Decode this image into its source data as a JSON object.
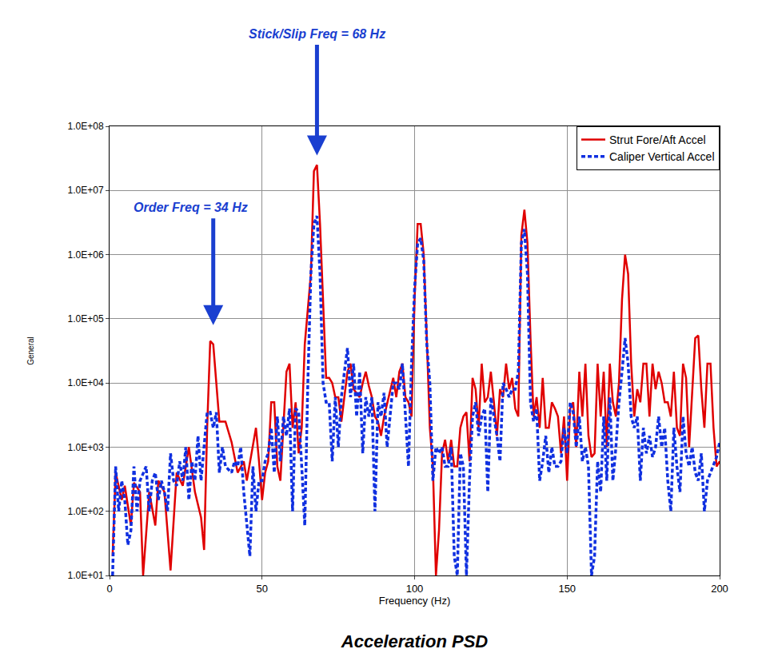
{
  "chart_data": {
    "type": "line",
    "title": "Acceleration PSD",
    "x_label": "Frequency (Hz)",
    "y_label": "General",
    "xlim": [
      0,
      200
    ],
    "xticks": [
      0,
      50,
      100,
      150,
      200
    ],
    "ylim": [
      10,
      100000000
    ],
    "yticks": [
      {
        "value": 10,
        "label": "1.0E+01"
      },
      {
        "value": 100,
        "label": "1.0E+02"
      },
      {
        "value": 1000,
        "label": "1.0E+03"
      },
      {
        "value": 10000,
        "label": "1.0E+04"
      },
      {
        "value": 100000,
        "label": "1.0E+05"
      },
      {
        "value": 1000000,
        "label": "1.0E+06"
      },
      {
        "value": 10000000,
        "label": "1.0E+07"
      },
      {
        "value": 100000000,
        "label": "1.0E+08"
      }
    ],
    "log": "y",
    "grid": true,
    "legend": "upper right",
    "annotations": [
      {
        "text": "Stick/Slip Freq = 68 Hz",
        "x": 68,
        "y": 35000000
      },
      {
        "text": "Order Freq = 34 Hz",
        "x": 34,
        "y": 80000
      }
    ],
    "series": [
      {
        "name": "Strut Fore/Aft Accel",
        "color": "#e00000",
        "line_style": "solid",
        "x": [
          1,
          2,
          4,
          5,
          7,
          8,
          10,
          11,
          13,
          15,
          16,
          18,
          20,
          22,
          24,
          26,
          28,
          30,
          31,
          32,
          33,
          34,
          35,
          36,
          38,
          40,
          42,
          44,
          45,
          47,
          48,
          49,
          50,
          51,
          52,
          53,
          54,
          55,
          56,
          58,
          59,
          60,
          61,
          62,
          63,
          64,
          66,
          67,
          68,
          69,
          70,
          71,
          72,
          73,
          74,
          75,
          76,
          78,
          79,
          80,
          82,
          83,
          84,
          85,
          86,
          87,
          88,
          89,
          90,
          92,
          93,
          94,
          95,
          96,
          97,
          98,
          99,
          100,
          101,
          102,
          103,
          104,
          105,
          106,
          107,
          108,
          109,
          110,
          111,
          112,
          113,
          114,
          115,
          116,
          117,
          118,
          119,
          120,
          121,
          122,
          123,
          124,
          125,
          126,
          127,
          128,
          129,
          130,
          131,
          132,
          133,
          134,
          135,
          136,
          137,
          138,
          139,
          140,
          141,
          142,
          143,
          144,
          145,
          146,
          147,
          148,
          149,
          150,
          151,
          152,
          153,
          154,
          155,
          156,
          157,
          158,
          159,
          160,
          161,
          162,
          163,
          164,
          165,
          166,
          167,
          168,
          169,
          170,
          171,
          172,
          173,
          174,
          175,
          176,
          177,
          178,
          179,
          180,
          181,
          182,
          183,
          184,
          185,
          186,
          187,
          188,
          189,
          190,
          191,
          192,
          193,
          194,
          195,
          196,
          197,
          198,
          199,
          200
        ],
        "values": [
          20,
          400,
          150,
          250,
          60,
          280,
          200,
          10,
          200,
          60,
          300,
          200,
          12,
          400,
          250,
          1000,
          200,
          80,
          25,
          2000,
          45000,
          40000,
          10000,
          2500,
          2500,
          1200,
          400,
          600,
          300,
          1000,
          2000,
          600,
          150,
          400,
          600,
          5000,
          5000,
          500,
          300,
          15000,
          20000,
          2000,
          5000,
          800,
          2000,
          40000,
          500000,
          20000000,
          25000000,
          3000000,
          200000,
          12000,
          12000,
          10000,
          6000,
          6000,
          2500,
          15000,
          20000,
          8000,
          6000,
          10000,
          15000,
          9000,
          6000,
          3000,
          2500,
          1500,
          3000,
          8000,
          12000,
          6000,
          15000,
          20000,
          6000,
          5000,
          3000,
          200000,
          3000000,
          3000000,
          1000000,
          50000,
          2000,
          500,
          10,
          50,
          800,
          1300,
          600,
          1300,
          500,
          500,
          2000,
          3000,
          3500,
          600,
          12000,
          8000,
          2000,
          20000,
          5000,
          6000,
          15000,
          5000,
          1500,
          8000,
          6000,
          20000,
          8000,
          12000,
          4000,
          3000,
          2000000,
          5000000,
          1500000,
          50000,
          3000,
          6000,
          2000,
          12000,
          2000,
          2000,
          5000,
          4000,
          3000,
          800,
          3000,
          300,
          4000,
          5000,
          1000,
          15000,
          3000,
          20000,
          1500,
          700,
          800,
          20000,
          3000,
          15000,
          1000,
          20000,
          5000,
          3000,
          10000,
          200000,
          1000000,
          500000,
          20000,
          3000,
          8000,
          5000,
          20000,
          20000,
          3000,
          20000,
          8000,
          15000,
          10000,
          5000,
          5000,
          3000,
          15000,
          2000,
          1500,
          20000,
          12000,
          1000,
          8000,
          50000,
          55000,
          8000,
          2000,
          20000,
          20000,
          2000,
          500,
          600
        ]
      },
      {
        "name": "Caliper Vertical Accel",
        "color": "#1030e0",
        "line_style": "dashed",
        "x": [
          1,
          2,
          3,
          4,
          5,
          6,
          7,
          8,
          9,
          10,
          12,
          13,
          14,
          15,
          16,
          17,
          18,
          19,
          20,
          21,
          22,
          23,
          24,
          25,
          26,
          27,
          28,
          29,
          30,
          31,
          32,
          33,
          34,
          35,
          36,
          37,
          38,
          40,
          41,
          42,
          43,
          44,
          45,
          46,
          47,
          48,
          49,
          50,
          51,
          52,
          53,
          54,
          55,
          56,
          57,
          58,
          59,
          60,
          61,
          62,
          63,
          64,
          65,
          66,
          67,
          68,
          69,
          70,
          71,
          72,
          73,
          74,
          75,
          76,
          77,
          78,
          79,
          80,
          81,
          82,
          83,
          84,
          85,
          86,
          87,
          88,
          89,
          90,
          91,
          92,
          93,
          94,
          95,
          96,
          97,
          98,
          99,
          100,
          101,
          102,
          103,
          104,
          105,
          106,
          107,
          108,
          109,
          110,
          111,
          112,
          113,
          114,
          115,
          116,
          117,
          118,
          119,
          120,
          121,
          122,
          123,
          124,
          125,
          126,
          127,
          128,
          129,
          130,
          131,
          132,
          133,
          134,
          135,
          136,
          137,
          138,
          139,
          140,
          141,
          142,
          143,
          144,
          145,
          146,
          147,
          148,
          149,
          150,
          151,
          152,
          153,
          154,
          155,
          156,
          157,
          158,
          159,
          160,
          161,
          162,
          163,
          164,
          165,
          166,
          167,
          168,
          169,
          170,
          171,
          172,
          173,
          174,
          175,
          176,
          177,
          178,
          179,
          180,
          181,
          182,
          183,
          184,
          185,
          186,
          187,
          188,
          189,
          190,
          191,
          192,
          193,
          194,
          195,
          196,
          197,
          198,
          199,
          200
        ],
        "values": [
          10,
          500,
          100,
          300,
          150,
          30,
          50,
          500,
          100,
          300,
          500,
          100,
          300,
          400,
          150,
          300,
          200,
          100,
          800,
          300,
          250,
          600,
          300,
          1000,
          150,
          600,
          300,
          1500,
          300,
          1000,
          3500,
          3500,
          2000,
          3500,
          400,
          1000,
          500,
          400,
          600,
          500,
          1000,
          200,
          60,
          20,
          500,
          100,
          300,
          300,
          600,
          800,
          2000,
          400,
          3000,
          600,
          3000,
          1500,
          4000,
          100,
          4000,
          3500,
          500,
          60,
          10000,
          500000,
          3000000,
          4000000,
          500000,
          10000,
          5000,
          5000,
          600,
          6000,
          1000,
          6000,
          15000,
          35000,
          6000,
          20000,
          3000,
          15000,
          800,
          6000,
          3000,
          6000,
          100,
          5000,
          3000,
          7000,
          1000,
          3000,
          10000,
          10000,
          8000,
          20000,
          3000,
          500,
          20000,
          300000,
          1500000,
          1800000,
          800000,
          40000,
          10000,
          300,
          1000,
          800,
          1000,
          500,
          500,
          1000,
          20,
          10,
          800,
          500,
          10,
          300,
          3000,
          5000,
          1500,
          3000,
          4000,
          200,
          6000,
          3000,
          1500,
          600,
          10000,
          8000,
          6000,
          8000,
          8000,
          15000,
          1500000,
          2500000,
          500000,
          5000,
          2500,
          4000,
          300,
          600,
          1500,
          400,
          1000,
          500,
          500,
          600,
          2000,
          800,
          5000,
          3500,
          1000,
          3000,
          600,
          1000,
          500,
          10,
          20,
          600,
          200,
          3000,
          300,
          6000,
          300,
          1000,
          5000,
          15000,
          50000,
          20000,
          3000,
          2000,
          3000,
          300,
          2000,
          800,
          1500,
          700,
          1000,
          3000,
          1000,
          2000,
          300,
          100,
          2000,
          500,
          200,
          3000,
          800,
          500,
          1000,
          400,
          300,
          800,
          100,
          300,
          400,
          500,
          700,
          1200
        ]
      }
    ]
  }
}
